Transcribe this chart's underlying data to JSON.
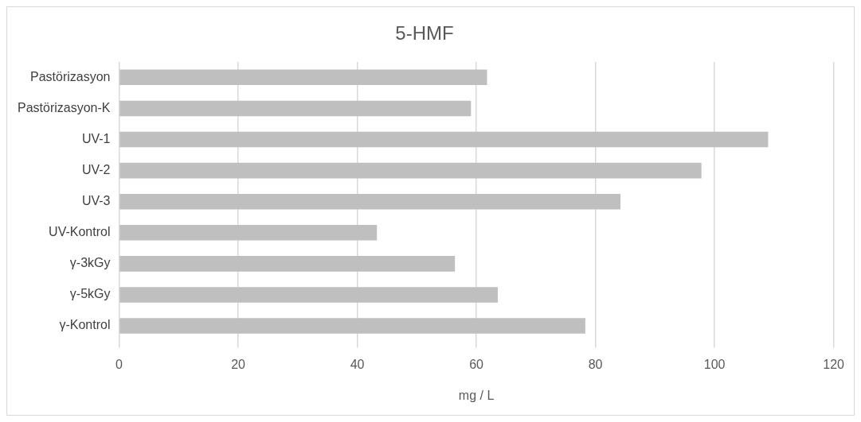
{
  "chart_data": {
    "type": "bar",
    "orientation": "horizontal",
    "title": "5-HMF",
    "xlabel": "mg / L",
    "categories": [
      "Pastörizasyon",
      "Pastörizasyon-K",
      "UV-1",
      "UV-2",
      "UV-3",
      "UV-Kontrol",
      "γ-3kGy",
      "γ-5kGy",
      "γ-Kontrol"
    ],
    "values": [
      61.8,
      59.1,
      109.0,
      97.8,
      84.2,
      43.3,
      56.4,
      63.6,
      78.3
    ],
    "color": "#bfbfbf",
    "xlim": [
      0,
      120
    ],
    "xticks": [
      0,
      20,
      40,
      60,
      80,
      100,
      120
    ],
    "grid": "x"
  }
}
